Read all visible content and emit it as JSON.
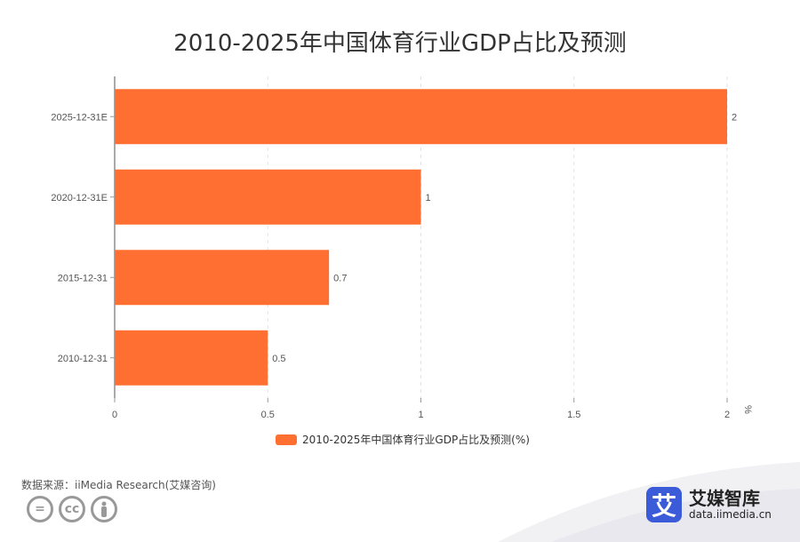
{
  "chart_data": {
    "type": "bar",
    "orientation": "horizontal",
    "title": "2010-2025年中国体育行业GDP占比及预测",
    "categories": [
      "2025-12-31E",
      "2020-12-31E",
      "2015-12-31",
      "2010-12-31"
    ],
    "series": [
      {
        "name": "2010-2025年中国体育行业GDP占比及预测(%)",
        "values": [
          2,
          1,
          0.7,
          0.5
        ],
        "color": "#ff6f31"
      }
    ],
    "data_labels": [
      "2",
      "1",
      "0.7",
      "0.5"
    ],
    "x_ticks": [
      "0",
      "0.5",
      "1",
      "1.5",
      "2"
    ],
    "xlim": [
      0,
      2
    ],
    "x_unit": "%",
    "grid": true,
    "legend": "bottom"
  },
  "footer": {
    "source": "数据来源：iiMedia Research(艾媒咨询)",
    "brand_logo_char": "艾",
    "brand_name": "艾媒智库",
    "brand_url": "data.iimedia.cn",
    "brand_color": "#3b5bd9"
  }
}
